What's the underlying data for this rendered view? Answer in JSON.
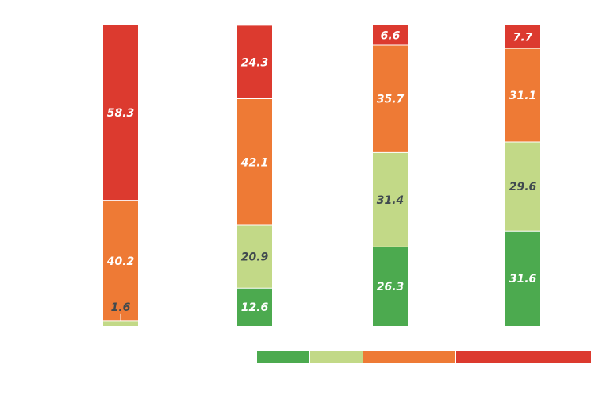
{
  "colors": {
    "green": "#4caa4f",
    "light_green": "#c2d987",
    "orange": "#ee7a35",
    "red": "#dc3a2f",
    "label_light": "#ffffff",
    "label_dark": "#404a4f"
  },
  "chart_data": {
    "type": "bar",
    "stacked": true,
    "categories": [
      "",
      "",
      "",
      ""
    ],
    "ylim": [
      0,
      100
    ],
    "grid": false,
    "legend_position": "bottom-right",
    "series": [
      {
        "color": "#4caa4f",
        "values": [
          0,
          12.6,
          26.3,
          31.6
        ],
        "labels": [
          "",
          "12.6",
          "26.3",
          "31.6"
        ]
      },
      {
        "color": "#c2d987",
        "values": [
          1.6,
          20.9,
          31.4,
          29.6
        ],
        "labels": [
          "1.6",
          "20.9",
          "31.4",
          "29.6"
        ]
      },
      {
        "color": "#ee7a35",
        "values": [
          40.2,
          42.1,
          35.7,
          31.1
        ],
        "labels": [
          "40.2",
          "42.1",
          "35.7",
          "31.1"
        ]
      },
      {
        "color": "#dc3a2f",
        "values": [
          58.3,
          24.3,
          6.6,
          7.7
        ],
        "labels": [
          "58.3",
          "24.3",
          "6.6",
          "7.7"
        ]
      }
    ]
  }
}
